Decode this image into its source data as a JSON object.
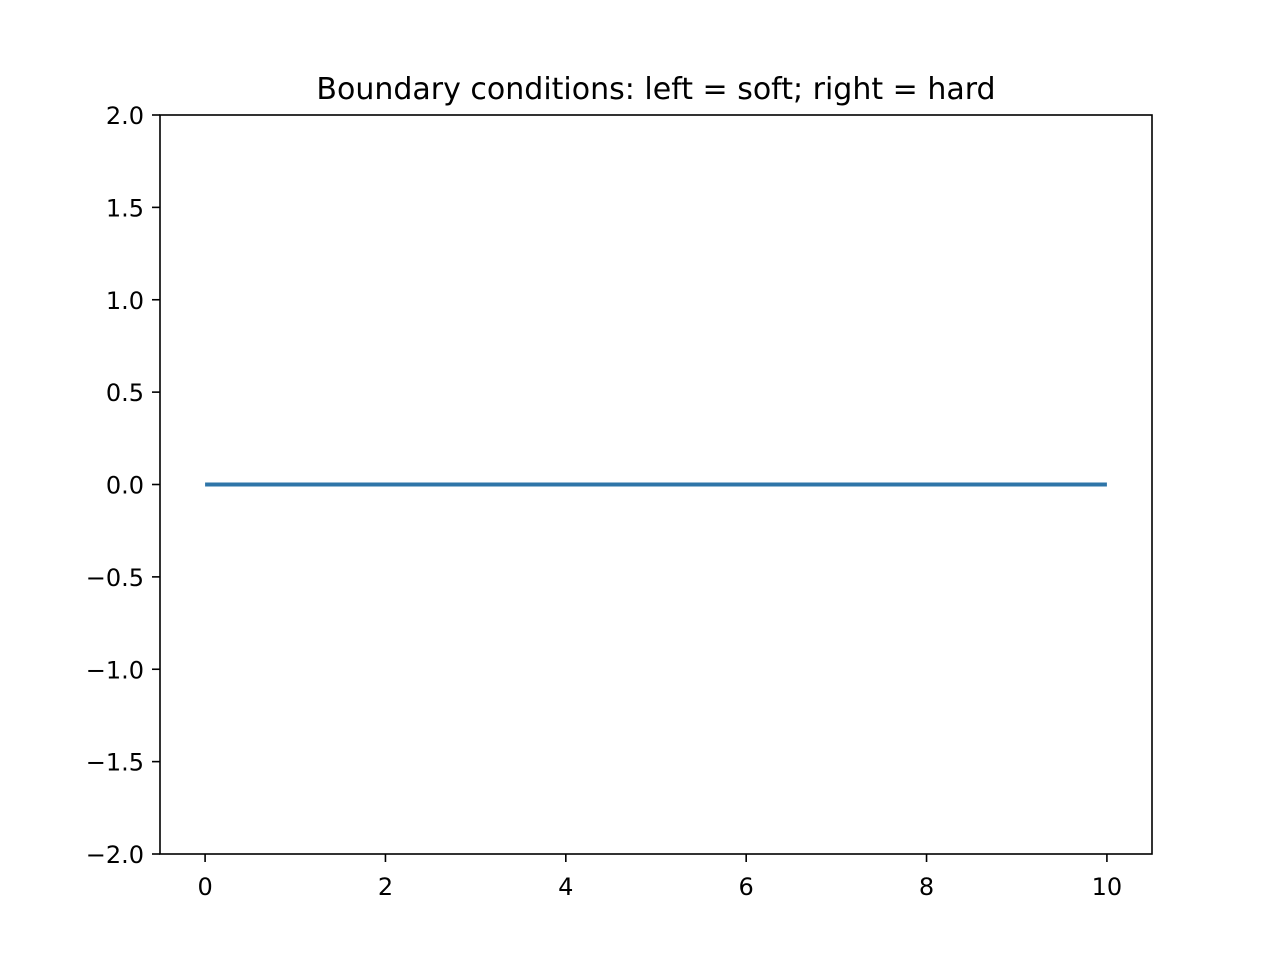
{
  "chart_data": {
    "type": "line",
    "title": "Boundary conditions: left = soft; right = hard",
    "xlabel": "",
    "ylabel": "",
    "xlim": [
      -0.5,
      10.5
    ],
    "ylim": [
      -2.0,
      2.0
    ],
    "x_ticks": [
      {
        "value": 0,
        "label": "0"
      },
      {
        "value": 2,
        "label": "2"
      },
      {
        "value": 4,
        "label": "4"
      },
      {
        "value": 6,
        "label": "6"
      },
      {
        "value": 8,
        "label": "8"
      },
      {
        "value": 10,
        "label": "10"
      }
    ],
    "y_ticks": [
      {
        "value": 2.0,
        "label": "2.0"
      },
      {
        "value": 1.5,
        "label": "1.5"
      },
      {
        "value": 1.0,
        "label": "1.0"
      },
      {
        "value": 0.5,
        "label": "0.5"
      },
      {
        "value": 0.0,
        "label": "0.0"
      },
      {
        "value": -0.5,
        "label": "−0.5"
      },
      {
        "value": -1.0,
        "label": "−1.0"
      },
      {
        "value": -1.5,
        "label": "−1.5"
      },
      {
        "value": -2.0,
        "label": "−2.0"
      }
    ],
    "grid": false,
    "legend": "none",
    "series": [
      {
        "color": "#2e75a8",
        "x": [
          0,
          10
        ],
        "y": [
          0.0,
          0.0
        ]
      }
    ]
  }
}
